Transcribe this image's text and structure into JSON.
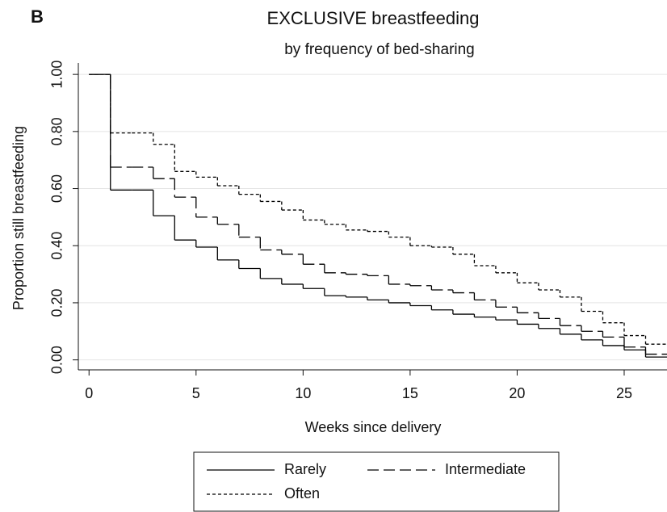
{
  "chart_data": {
    "type": "step",
    "panel_label": "B",
    "title": "EXCLUSIVE breastfeeding",
    "subtitle": "by frequency of bed-sharing",
    "x_label": "Weeks since delivery",
    "y_label": "Proportion still breastfeeding",
    "x": [
      0,
      1,
      2,
      3,
      4,
      5,
      6,
      7,
      8,
      9,
      10,
      11,
      12,
      13,
      14,
      15,
      16,
      17,
      18,
      19,
      20,
      21,
      22,
      23,
      24,
      25,
      26
    ],
    "series": [
      {
        "name": "Rarely",
        "color": "#000000",
        "line_style": "solid",
        "values": [
          1.0,
          0.595,
          0.595,
          0.505,
          0.42,
          0.395,
          0.35,
          0.32,
          0.285,
          0.265,
          0.25,
          0.225,
          0.22,
          0.21,
          0.2,
          0.19,
          0.175,
          0.16,
          0.15,
          0.14,
          0.125,
          0.11,
          0.09,
          0.07,
          0.05,
          0.035,
          0.01
        ]
      },
      {
        "name": "Intermediate",
        "color": "#000000",
        "line_style": "long-dash",
        "values": [
          1.0,
          0.675,
          0.675,
          0.635,
          0.57,
          0.5,
          0.475,
          0.43,
          0.385,
          0.37,
          0.335,
          0.305,
          0.3,
          0.295,
          0.265,
          0.26,
          0.245,
          0.235,
          0.21,
          0.185,
          0.165,
          0.145,
          0.12,
          0.1,
          0.08,
          0.045,
          0.02
        ]
      },
      {
        "name": "Often",
        "color": "#000000",
        "line_style": "short-dash",
        "values": [
          1.0,
          0.795,
          0.795,
          0.755,
          0.66,
          0.64,
          0.61,
          0.58,
          0.555,
          0.525,
          0.49,
          0.475,
          0.455,
          0.45,
          0.43,
          0.4,
          0.395,
          0.37,
          0.33,
          0.305,
          0.27,
          0.245,
          0.22,
          0.17,
          0.13,
          0.085,
          0.055
        ]
      }
    ],
    "xlim": [
      -0.5,
      27
    ],
    "ylim": [
      -0.035,
      1.04
    ],
    "xticks": [
      0,
      5,
      10,
      15,
      20,
      25
    ],
    "yticks": [
      {
        "value": 0,
        "label": "0.00"
      },
      {
        "value": 0.2,
        "label": "0.20"
      },
      {
        "value": 0.4,
        "label": "0.40"
      },
      {
        "value": 0.6,
        "label": "0.60"
      },
      {
        "value": 0.8,
        "label": "0.80"
      },
      {
        "value": 1,
        "label": "1.00"
      }
    ],
    "grid": true,
    "legend_position": "bottom"
  }
}
